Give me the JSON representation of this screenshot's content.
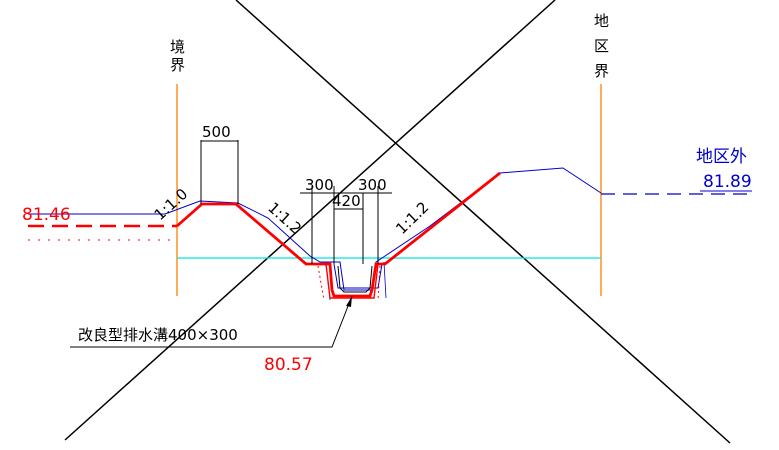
{
  "boundary_left": {
    "chars": [
      "境",
      "界"
    ]
  },
  "boundary_right": {
    "chars": [
      "地",
      "区",
      "界"
    ]
  },
  "dimensions": {
    "top_width": "500",
    "left_side": "300",
    "right_side": "300",
    "bottom_width": "420"
  },
  "slopes": {
    "left": "1:1.0",
    "middle": "1:1.2",
    "right": "1:1.2"
  },
  "elevations": {
    "left": "81.46",
    "right": "81.89",
    "drain": "80.57"
  },
  "labels": {
    "outside_district": "地区外",
    "drain_type": "改良型排水溝400×300"
  },
  "colors": {
    "design_line": "#ff0000",
    "existing_line": "#0000cc",
    "boundary_line": "#ff8000",
    "water_line": "#00e5e5"
  }
}
